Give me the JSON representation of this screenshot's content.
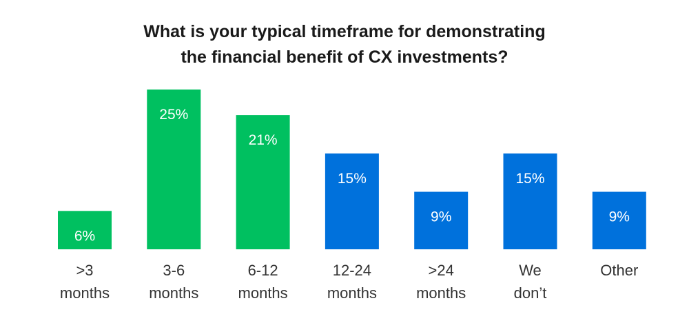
{
  "chart_data": {
    "type": "bar",
    "title": "What is your typical timeframe for demonstrating\nthe financial benefit of CX investments?",
    "xlabel": "",
    "ylabel": "",
    "ylim": [
      0,
      25
    ],
    "grid": false,
    "legend": "none",
    "categories": [
      [
        ">3",
        "months"
      ],
      [
        "3-6",
        "months"
      ],
      [
        "6-12",
        "months"
      ],
      [
        "12-24",
        "months"
      ],
      [
        ">24",
        "months"
      ],
      [
        "We",
        "don’t"
      ],
      [
        "Other"
      ]
    ],
    "values": [
      6,
      25,
      21,
      15,
      9,
      15,
      9
    ],
    "data_labels": [
      "6%",
      "25%",
      "21%",
      "15%",
      "9%",
      "15%",
      "9%"
    ],
    "bar_colors": [
      "#00c060",
      "#00c060",
      "#00c060",
      "#0071dc",
      "#0071dc",
      "#0071dc",
      "#0071dc"
    ]
  }
}
